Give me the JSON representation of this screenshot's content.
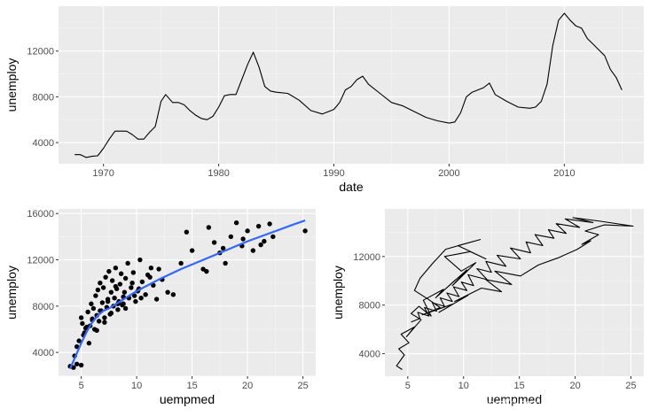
{
  "colors": {
    "panel": "#ebebeb",
    "grid_major": "#ffffff",
    "grid_minor": "#f5f5f5",
    "ink": "#000000",
    "tick_text": "#4d4d4d",
    "smooth": "#3366ff"
  },
  "watermark": "https://blog.csdn.net/Gage_0209",
  "chart_data": [
    {
      "type": "line",
      "title": "",
      "xlabel": "date",
      "ylabel": "unemploy",
      "xlim": [
        1966.1,
        2016.9
      ],
      "ylim": [
        2150,
        15920
      ],
      "x_ticks": [
        1970,
        1980,
        1990,
        2000,
        2010
      ],
      "x_tick_labels": [
        "1970",
        "1980",
        "1990",
        "2000",
        "2010"
      ],
      "y_ticks": [
        4000,
        8000,
        12000
      ],
      "y_tick_labels": [
        "4000",
        "8000",
        "12000"
      ],
      "series": [
        {
          "name": "unemploy",
          "x": [
            1967.5,
            1968.0,
            1968.5,
            1969.0,
            1969.5,
            1970.0,
            1970.5,
            1971.0,
            1971.5,
            1972.0,
            1972.5,
            1973.0,
            1973.5,
            1974.0,
            1974.5,
            1975.0,
            1975.4,
            1976.0,
            1976.5,
            1977.0,
            1977.5,
            1978.0,
            1978.5,
            1979.0,
            1979.5,
            1980.0,
            1980.5,
            1981.0,
            1981.5,
            1982.0,
            1982.5,
            1983.0,
            1983.5,
            1984.0,
            1984.5,
            1985.0,
            1986.0,
            1987.0,
            1988.0,
            1989.0,
            1990.0,
            1990.5,
            1991.0,
            1991.5,
            1992.0,
            1992.5,
            1993.0,
            1994.0,
            1995.0,
            1996.0,
            1997.0,
            1998.0,
            1999.0,
            2000.0,
            2000.5,
            2001.0,
            2001.5,
            2002.0,
            2002.5,
            2003.0,
            2003.5,
            2004.0,
            2005.0,
            2006.0,
            2007.0,
            2007.5,
            2008.0,
            2008.5,
            2009.0,
            2009.5,
            2010.0,
            2010.5,
            2011.0,
            2011.5,
            2012.0,
            2012.5,
            2013.0,
            2013.5,
            2014.0,
            2014.5,
            2015.0
          ],
          "values": [
            2950,
            2950,
            2700,
            2800,
            2850,
            3500,
            4300,
            5000,
            5000,
            5000,
            4700,
            4300,
            4300,
            4900,
            5400,
            7600,
            8200,
            7500,
            7500,
            7300,
            6800,
            6400,
            6100,
            6000,
            6300,
            7100,
            8100,
            8200,
            8200,
            9500,
            10800,
            11900,
            10600,
            8900,
            8500,
            8400,
            8300,
            7700,
            6800,
            6500,
            6900,
            7500,
            8600,
            8900,
            9500,
            9800,
            9100,
            8300,
            7500,
            7200,
            6700,
            6200,
            5900,
            5700,
            5800,
            6600,
            8000,
            8400,
            8600,
            8800,
            9200,
            8200,
            7600,
            7100,
            7000,
            7100,
            7600,
            9100,
            12500,
            14700,
            15300,
            14700,
            14200,
            14000,
            13100,
            12600,
            12100,
            11600,
            10400,
            9700,
            8600
          ]
        }
      ]
    },
    {
      "type": "scatter",
      "title": "",
      "xlabel": "uempmed",
      "ylabel": "unemploy",
      "xlim": [
        2.95,
        26.15
      ],
      "ylim": [
        1950,
        16400
      ],
      "x_ticks": [
        5,
        10,
        15,
        20,
        25
      ],
      "x_tick_labels": [
        "5",
        "10",
        "15",
        "20",
        "25"
      ],
      "y_ticks": [
        4000,
        8000,
        12000,
        16000
      ],
      "y_tick_labels": [
        "4000",
        "8000",
        "12000",
        "16000"
      ],
      "points": {
        "x": [
          4.0,
          4.3,
          4.4,
          4.6,
          4.6,
          4.8,
          5.0,
          5.1,
          5.0,
          5.3,
          5.5,
          5.6,
          5.8,
          5.9,
          6.0,
          6.1,
          6.2,
          6.3,
          6.4,
          6.5,
          6.6,
          6.7,
          6.8,
          6.9,
          7.0,
          7.1,
          7.2,
          7.3,
          7.4,
          7.5,
          7.6,
          7.7,
          7.8,
          7.9,
          8.0,
          8.1,
          8.2,
          8.3,
          8.4,
          8.5,
          8.6,
          8.7,
          8.8,
          8.9,
          9.0,
          9.2,
          9.3,
          9.5,
          9.7,
          9.9,
          10.1,
          10.3,
          10.5,
          10.8,
          11.0,
          11.3,
          11.5,
          11.8,
          12.0,
          12.3,
          12.8,
          13.3,
          14.0,
          14.5,
          15.0,
          16.0,
          16.5,
          17.0,
          17.5,
          18.0,
          18.5,
          19.0,
          19.5,
          20.0,
          20.5,
          21.0,
          21.5,
          22.0,
          22.3,
          25.2,
          5.2,
          5.7,
          6.4,
          7.1,
          7.7,
          8.3,
          9.0,
          9.8,
          10.4,
          11.2,
          5.4,
          6.0,
          6.7,
          7.4,
          8.1,
          8.8,
          9.6,
          10.2,
          16.3,
          17.8,
          19.6,
          21.2
        ],
        "y": [
          2800,
          2700,
          3700,
          3000,
          4500,
          5000,
          2900,
          6500,
          7000,
          5700,
          6200,
          7500,
          6300,
          8200,
          6800,
          7800,
          6000,
          8900,
          7200,
          9400,
          6700,
          10000,
          7600,
          8300,
          9600,
          7000,
          10500,
          7900,
          8600,
          11000,
          7300,
          9200,
          10200,
          8000,
          8700,
          11300,
          9500,
          7700,
          8400,
          9900,
          10800,
          8100,
          8800,
          9200,
          10400,
          11700,
          8700,
          9600,
          10900,
          8400,
          9300,
          12000,
          10100,
          9000,
          10700,
          11300,
          9800,
          8600,
          11200,
          10300,
          9200,
          9000,
          11700,
          14400,
          12800,
          11200,
          14800,
          13500,
          12600,
          11700,
          14000,
          15200,
          13200,
          14500,
          12800,
          14900,
          13600,
          15100,
          14000,
          14500,
          5500,
          4800,
          5900,
          6600,
          7400,
          8200,
          7800,
          8900,
          8700,
          10500,
          6100,
          6900,
          7600,
          8400,
          9700,
          8200,
          10000,
          9500,
          11000,
          13000,
          13800,
          13300
        ]
      },
      "smooth": {
        "name": "loess",
        "x": [
          4.0,
          4.5,
          5.0,
          5.5,
          6.0,
          6.5,
          7.0,
          7.5,
          8.0,
          9.0,
          10.0,
          12.0,
          14.0,
          16.0,
          18.0,
          20.0,
          22.0,
          24.0,
          25.2
        ],
        "y": [
          2600,
          3700,
          4800,
          5800,
          6600,
          7200,
          7600,
          7800,
          8100,
          8700,
          9300,
          10300,
          11200,
          12000,
          12800,
          13600,
          14300,
          15000,
          15400
        ]
      }
    },
    {
      "type": "line",
      "title": "",
      "xlabel": "uempmed",
      "ylabel": "unemploy",
      "xlim": [
        2.95,
        26.15
      ],
      "ylim": [
        2150,
        15920
      ],
      "x_ticks": [
        5,
        10,
        15,
        20,
        25
      ],
      "x_tick_labels": [
        "5",
        "10",
        "15",
        "20",
        "25"
      ],
      "y_ticks": [
        4000,
        8000,
        12000
      ],
      "y_tick_labels": [
        "4000",
        "8000",
        "12000"
      ],
      "series": [
        {
          "name": "path",
          "x": [
            4.5,
            4.0,
            4.7,
            4.2,
            5.1,
            4.4,
            5.6,
            4.9,
            6.2,
            5.3,
            6.0,
            7.1,
            6.4,
            8.2,
            7.5,
            9.3,
            8.1,
            10.3,
            9.0,
            11.1,
            9.8,
            8.3,
            10.6,
            12.0,
            9.5,
            11.5,
            8.4,
            7.2,
            6.1,
            5.6,
            6.8,
            7.9,
            6.3,
            9.1,
            7.8,
            10.4,
            9.2,
            11.6,
            13.4,
            12.0,
            14.3,
            12.8,
            15.1,
            16.7,
            18.5,
            20.2,
            21.4,
            20.6,
            22.1,
            20.9,
            22.6,
            25.2,
            22.3,
            19.8,
            21.6,
            19.1,
            20.4,
            18.3,
            19.2,
            17.6,
            18.1,
            16.4,
            17.1,
            15.6,
            16.0,
            14.2,
            15.1,
            13.0,
            13.8,
            12.0,
            12.5,
            11.2,
            12.1,
            10.4,
            10.9,
            9.8,
            10.3,
            9.1,
            9.6,
            8.5,
            9.0,
            7.9,
            8.3,
            7.2,
            7.6,
            6.5,
            6.9,
            5.9,
            6.1,
            5.3
          ],
          "values": [
            2700,
            3000,
            3900,
            4400,
            4900,
            5600,
            6200,
            5400,
            6800,
            7300,
            7900,
            7100,
            8400,
            9300,
            8600,
            10100,
            9100,
            10900,
            9600,
            11500,
            10800,
            12000,
            12400,
            11800,
            12900,
            13400,
            12600,
            11400,
            10200,
            9200,
            8500,
            7800,
            7200,
            8100,
            7400,
            8800,
            8300,
            9400,
            9100,
            10100,
            9700,
            10800,
            10400,
            11300,
            11900,
            12600,
            13300,
            13000,
            13800,
            14100,
            14600,
            14500,
            14900,
            15200,
            14800,
            15100,
            14400,
            14700,
            13900,
            14200,
            13500,
            13800,
            12900,
            13200,
            12300,
            12700,
            11800,
            12100,
            11200,
            11600,
            10700,
            11000,
            10100,
            10500,
            9600,
            9900,
            9200,
            9500,
            8700,
            9000,
            8300,
            8600,
            7900,
            8200,
            7500,
            7800,
            7100,
            7400,
            6900,
            6600
          ]
        }
      ]
    }
  ]
}
